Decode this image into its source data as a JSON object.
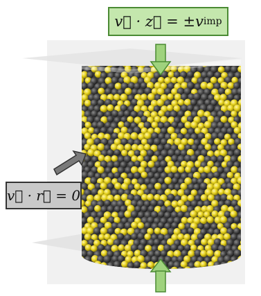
{
  "labels": {
    "top_condition": "v⃗ · z⃗ = ±v_imp",
    "top_condition_main": "v⃗ · z⃗ = ±v",
    "top_condition_sub": "imp",
    "side_condition": "v⃗ · r⃗ = 0"
  },
  "colors": {
    "top_box_fill": "#c4e7ad",
    "top_box_border": "#4a8a33",
    "side_box_fill": "#c9c9c9",
    "side_box_border": "#333333",
    "particle_yellow": "#e6d21e",
    "particle_dark": "#4a4a4a",
    "arrow_green": "#9fd27d",
    "arrow_gray": "#7a7a7a"
  },
  "particles": {
    "yellow_fraction": 0.45,
    "kinds": [
      "yellow",
      "dark"
    ]
  }
}
